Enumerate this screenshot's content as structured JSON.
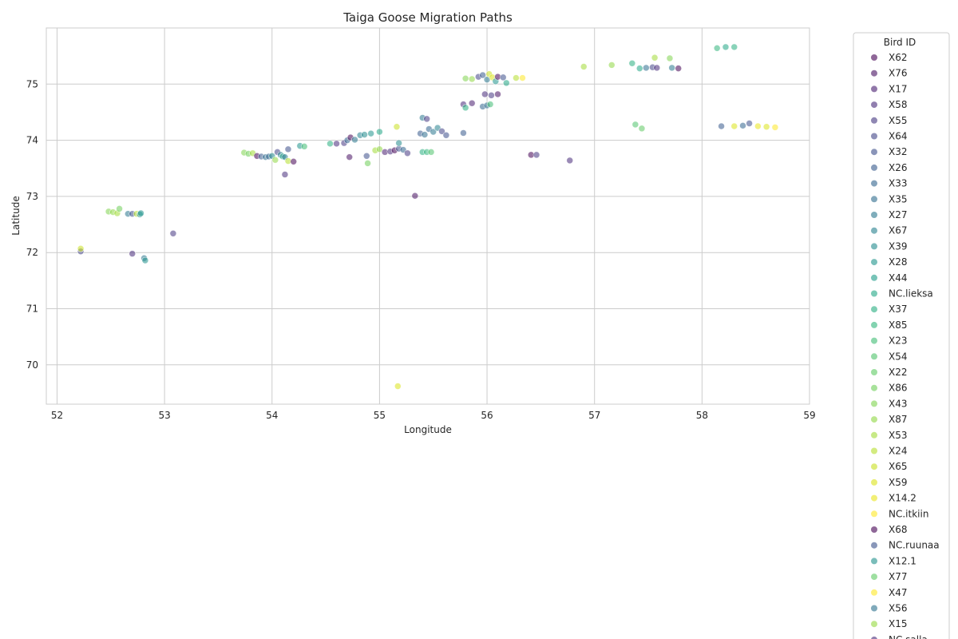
{
  "chart_data": {
    "type": "scatter",
    "title": "Taiga Goose Migration Paths",
    "xlabel": "Longitude",
    "ylabel": "Latitude",
    "xlim": [
      51.9,
      59.0
    ],
    "ylim": [
      69.3,
      76.0
    ],
    "xticks": [
      "52",
      "53",
      "54",
      "55",
      "56",
      "57",
      "58",
      "59"
    ],
    "yticks": [
      "70",
      "71",
      "72",
      "73",
      "74",
      "75"
    ],
    "grid": true,
    "colormap": "viridis",
    "marker_alpha": 0.55,
    "legend": {
      "title": "Bird ID",
      "placement": "outside-right",
      "entries": [
        "X62",
        "X76",
        "X17",
        "X58",
        "X55",
        "X64",
        "X32",
        "X26",
        "X33",
        "X35",
        "X27",
        "X67",
        "X39",
        "X28",
        "X44",
        "NC.lieksa",
        "X37",
        "X85",
        "X23",
        "X54",
        "X22",
        "X86",
        "X43",
        "X87",
        "X53",
        "X24",
        "X65",
        "X59",
        "X14.2",
        "NC.itkiin",
        "X68",
        "NC.ruunaa",
        "X12.1",
        "X77",
        "X47",
        "X56",
        "X15",
        "NC.salla"
      ],
      "colors": [
        "#440154",
        "#471063",
        "#481d6f",
        "#472a7a",
        "#453781",
        "#414487",
        "#3c4f8a",
        "#375a8c",
        "#32648e",
        "#2e6d8e",
        "#2a768e",
        "#26818e",
        "#238a8d",
        "#1f948c",
        "#1e9d89",
        "#21a685",
        "#28ae80",
        "#31b57b",
        "#3fbc73",
        "#4ec36b",
        "#5ec962",
        "#6ece58",
        "#7fd34e",
        "#90d743",
        "#a2da37",
        "#b5de2b",
        "#c8e020",
        "#dae319",
        "#eae51a",
        "#fde725",
        "#440154",
        "#3b528b",
        "#21918c",
        "#5ec962",
        "#fde725",
        "#2c728e",
        "#95d840",
        "#472d7b"
      ]
    },
    "series_points": [
      {
        "x": 52.22,
        "y": 72.02,
        "c": "#414487"
      },
      {
        "x": 52.22,
        "y": 72.07,
        "c": "#c8e020"
      },
      {
        "x": 52.48,
        "y": 72.73,
        "c": "#7fd34e"
      },
      {
        "x": 52.52,
        "y": 72.72,
        "c": "#90d743"
      },
      {
        "x": 52.56,
        "y": 72.7,
        "c": "#a2da37"
      },
      {
        "x": 52.58,
        "y": 72.78,
        "c": "#6ece58"
      },
      {
        "x": 52.66,
        "y": 72.69,
        "c": "#2a768e"
      },
      {
        "x": 52.7,
        "y": 72.69,
        "c": "#3c4f8a"
      },
      {
        "x": 52.74,
        "y": 72.69,
        "c": "#b5de2b"
      },
      {
        "x": 52.77,
        "y": 72.68,
        "c": "#21918c"
      },
      {
        "x": 52.78,
        "y": 72.7,
        "c": "#1f948c"
      },
      {
        "x": 52.7,
        "y": 71.98,
        "c": "#472a7a"
      },
      {
        "x": 52.81,
        "y": 71.9,
        "c": "#2a768e"
      },
      {
        "x": 52.82,
        "y": 71.86,
        "c": "#21918c"
      },
      {
        "x": 53.08,
        "y": 72.34,
        "c": "#453781"
      },
      {
        "x": 53.74,
        "y": 73.78,
        "c": "#7fd34e"
      },
      {
        "x": 53.78,
        "y": 73.76,
        "c": "#6ece58"
      },
      {
        "x": 53.82,
        "y": 73.77,
        "c": "#a2da37"
      },
      {
        "x": 53.86,
        "y": 73.72,
        "c": "#440154"
      },
      {
        "x": 53.9,
        "y": 73.71,
        "c": "#375a8c"
      },
      {
        "x": 53.94,
        "y": 73.7,
        "c": "#2e6d8e"
      },
      {
        "x": 53.97,
        "y": 73.71,
        "c": "#32648e"
      },
      {
        "x": 54.0,
        "y": 73.72,
        "c": "#238a8d"
      },
      {
        "x": 54.03,
        "y": 73.65,
        "c": "#90d743"
      },
      {
        "x": 54.05,
        "y": 73.79,
        "c": "#414487"
      },
      {
        "x": 54.08,
        "y": 73.74,
        "c": "#26818e"
      },
      {
        "x": 54.1,
        "y": 73.71,
        "c": "#21a685"
      },
      {
        "x": 54.12,
        "y": 73.7,
        "c": "#2a768e"
      },
      {
        "x": 54.15,
        "y": 73.84,
        "c": "#3c4f8a"
      },
      {
        "x": 54.15,
        "y": 73.63,
        "c": "#b5de2b"
      },
      {
        "x": 54.2,
        "y": 73.62,
        "c": "#440154"
      },
      {
        "x": 54.12,
        "y": 73.39,
        "c": "#472d7b"
      },
      {
        "x": 54.26,
        "y": 73.9,
        "c": "#1f948c"
      },
      {
        "x": 54.3,
        "y": 73.89,
        "c": "#3fbc73"
      },
      {
        "x": 54.54,
        "y": 73.94,
        "c": "#28ae80"
      },
      {
        "x": 54.6,
        "y": 73.94,
        "c": "#472a7a"
      },
      {
        "x": 54.67,
        "y": 73.95,
        "c": "#453781"
      },
      {
        "x": 54.7,
        "y": 74.0,
        "c": "#32648e"
      },
      {
        "x": 54.73,
        "y": 74.05,
        "c": "#440154"
      },
      {
        "x": 54.77,
        "y": 74.01,
        "c": "#2a768e"
      },
      {
        "x": 54.82,
        "y": 74.09,
        "c": "#26818e"
      },
      {
        "x": 54.86,
        "y": 74.1,
        "c": "#238a8d"
      },
      {
        "x": 54.92,
        "y": 74.12,
        "c": "#1f948c"
      },
      {
        "x": 55.0,
        "y": 74.15,
        "c": "#21a685"
      },
      {
        "x": 54.72,
        "y": 73.7,
        "c": "#471063"
      },
      {
        "x": 54.88,
        "y": 73.72,
        "c": "#3c4f8a"
      },
      {
        "x": 54.89,
        "y": 73.59,
        "c": "#6ece58"
      },
      {
        "x": 54.96,
        "y": 73.82,
        "c": "#a2da37"
      },
      {
        "x": 55.0,
        "y": 73.84,
        "c": "#90d743"
      },
      {
        "x": 55.05,
        "y": 73.79,
        "c": "#481d6f"
      },
      {
        "x": 55.1,
        "y": 73.8,
        "c": "#472a7a"
      },
      {
        "x": 55.14,
        "y": 73.82,
        "c": "#440154"
      },
      {
        "x": 55.18,
        "y": 73.85,
        "c": "#3c4f8a"
      },
      {
        "x": 55.22,
        "y": 73.83,
        "c": "#32648e"
      },
      {
        "x": 55.18,
        "y": 73.95,
        "c": "#238a8d"
      },
      {
        "x": 55.16,
        "y": 74.24,
        "c": "#c8e020"
      },
      {
        "x": 55.26,
        "y": 73.77,
        "c": "#453781"
      },
      {
        "x": 55.33,
        "y": 73.01,
        "c": "#471063"
      },
      {
        "x": 55.17,
        "y": 69.62,
        "c": "#dae319"
      },
      {
        "x": 55.4,
        "y": 73.79,
        "c": "#28ae80"
      },
      {
        "x": 55.44,
        "y": 73.79,
        "c": "#31b57b"
      },
      {
        "x": 55.48,
        "y": 73.79,
        "c": "#4ec36b"
      },
      {
        "x": 55.38,
        "y": 74.12,
        "c": "#375a8c"
      },
      {
        "x": 55.42,
        "y": 74.1,
        "c": "#2e6d8e"
      },
      {
        "x": 55.46,
        "y": 74.2,
        "c": "#32648e"
      },
      {
        "x": 55.5,
        "y": 74.15,
        "c": "#2a768e"
      },
      {
        "x": 55.54,
        "y": 74.22,
        "c": "#26818e"
      },
      {
        "x": 55.58,
        "y": 74.16,
        "c": "#414487"
      },
      {
        "x": 55.62,
        "y": 74.09,
        "c": "#3c4f8a"
      },
      {
        "x": 55.4,
        "y": 74.4,
        "c": "#2a768e"
      },
      {
        "x": 55.44,
        "y": 74.38,
        "c": "#453781"
      },
      {
        "x": 55.78,
        "y": 74.13,
        "c": "#375a8c"
      },
      {
        "x": 55.78,
        "y": 74.64,
        "c": "#472a7a"
      },
      {
        "x": 55.8,
        "y": 74.58,
        "c": "#28ae80"
      },
      {
        "x": 55.86,
        "y": 74.66,
        "c": "#481d6f"
      },
      {
        "x": 55.96,
        "y": 74.6,
        "c": "#32648e"
      },
      {
        "x": 56.0,
        "y": 74.62,
        "c": "#2e6d8e"
      },
      {
        "x": 56.03,
        "y": 74.64,
        "c": "#3fbc73"
      },
      {
        "x": 55.98,
        "y": 74.82,
        "c": "#472a7a"
      },
      {
        "x": 56.04,
        "y": 74.8,
        "c": "#453781"
      },
      {
        "x": 56.1,
        "y": 74.82,
        "c": "#471063"
      },
      {
        "x": 55.8,
        "y": 75.1,
        "c": "#7fd34e"
      },
      {
        "x": 55.86,
        "y": 75.09,
        "c": "#90d743"
      },
      {
        "x": 55.92,
        "y": 75.13,
        "c": "#414487"
      },
      {
        "x": 55.96,
        "y": 75.16,
        "c": "#375a8c"
      },
      {
        "x": 56.0,
        "y": 75.08,
        "c": "#2a768e"
      },
      {
        "x": 56.02,
        "y": 75.18,
        "c": "#c8e020"
      },
      {
        "x": 56.05,
        "y": 75.12,
        "c": "#dae319"
      },
      {
        "x": 56.08,
        "y": 75.05,
        "c": "#1f948c"
      },
      {
        "x": 56.1,
        "y": 75.13,
        "c": "#440154"
      },
      {
        "x": 56.15,
        "y": 75.12,
        "c": "#3c4f8a"
      },
      {
        "x": 56.18,
        "y": 75.02,
        "c": "#21a685"
      },
      {
        "x": 56.27,
        "y": 75.11,
        "c": "#b5de2b"
      },
      {
        "x": 56.33,
        "y": 75.11,
        "c": "#fde725"
      },
      {
        "x": 56.9,
        "y": 75.31,
        "c": "#a2da37"
      },
      {
        "x": 57.16,
        "y": 75.34,
        "c": "#90d743"
      },
      {
        "x": 57.35,
        "y": 75.37,
        "c": "#28ae80"
      },
      {
        "x": 57.42,
        "y": 75.28,
        "c": "#21a685"
      },
      {
        "x": 57.48,
        "y": 75.29,
        "c": "#2e6d8e"
      },
      {
        "x": 57.54,
        "y": 75.3,
        "c": "#414487"
      },
      {
        "x": 57.58,
        "y": 75.29,
        "c": "#472a7a"
      },
      {
        "x": 57.56,
        "y": 75.47,
        "c": "#a2da37"
      },
      {
        "x": 57.7,
        "y": 75.46,
        "c": "#7fd34e"
      },
      {
        "x": 57.72,
        "y": 75.29,
        "c": "#2a768e"
      },
      {
        "x": 57.78,
        "y": 75.28,
        "c": "#440154"
      },
      {
        "x": 57.38,
        "y": 74.28,
        "c": "#4ec36b"
      },
      {
        "x": 57.44,
        "y": 74.21,
        "c": "#5ec962"
      },
      {
        "x": 58.14,
        "y": 75.64,
        "c": "#31b57b"
      },
      {
        "x": 58.22,
        "y": 75.66,
        "c": "#21a685"
      },
      {
        "x": 58.3,
        "y": 75.66,
        "c": "#28ae80"
      },
      {
        "x": 58.18,
        "y": 74.25,
        "c": "#375a8c"
      },
      {
        "x": 58.3,
        "y": 74.25,
        "c": "#dae319"
      },
      {
        "x": 58.38,
        "y": 74.26,
        "c": "#32648e"
      },
      {
        "x": 58.44,
        "y": 74.3,
        "c": "#3c4f8a"
      },
      {
        "x": 58.52,
        "y": 74.25,
        "c": "#eae51a"
      },
      {
        "x": 58.6,
        "y": 74.24,
        "c": "#dae319"
      },
      {
        "x": 58.68,
        "y": 74.23,
        "c": "#fde725"
      },
      {
        "x": 56.77,
        "y": 73.64,
        "c": "#472a7a"
      },
      {
        "x": 56.41,
        "y": 73.74,
        "c": "#440154"
      },
      {
        "x": 56.46,
        "y": 73.74,
        "c": "#453781"
      }
    ]
  }
}
